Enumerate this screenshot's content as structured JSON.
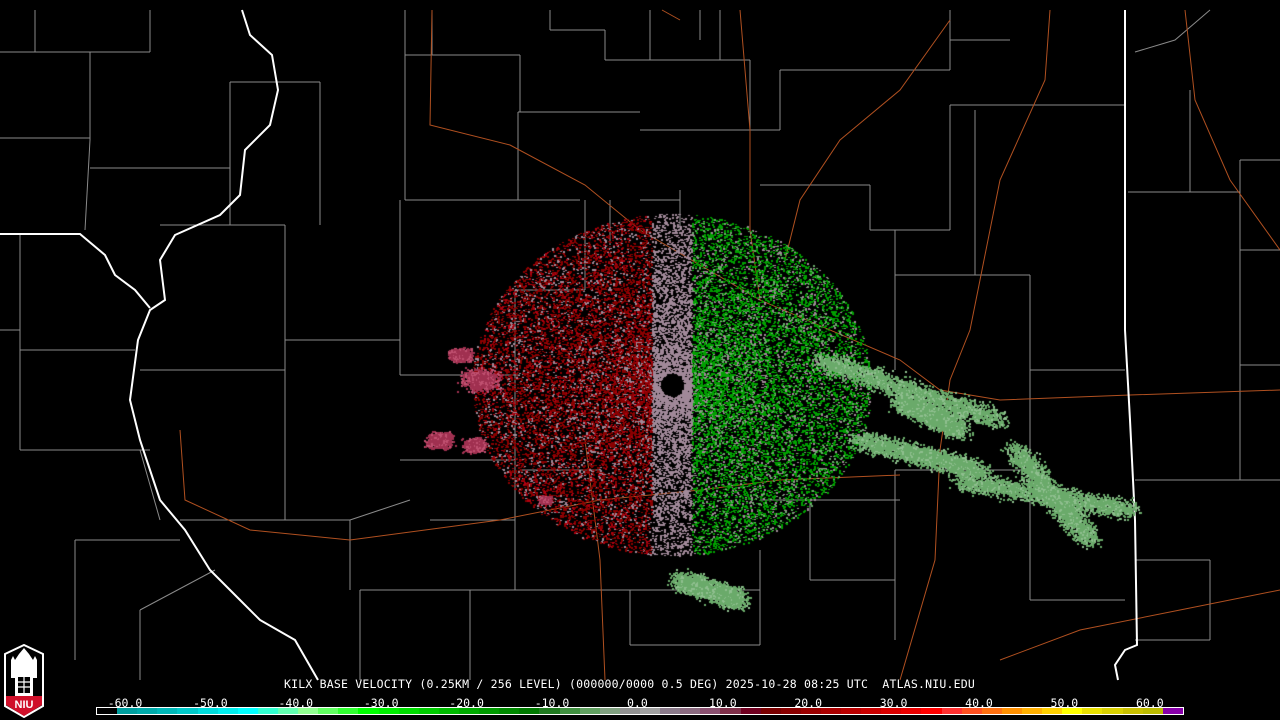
{
  "product": {
    "caption": "KILX BASE VELOCITY (0.25KM / 256 LEVEL) (000000/0000 0.5 DEG) 2025-10-28 08:25 UTC  ATLAS.NIU.EDU",
    "station": "KILX",
    "product_name": "BASE VELOCITY",
    "resolution": "0.25KM / 256 LEVEL",
    "elevation": "0.5 DEG",
    "datetime": "2025-10-28 08:25 UTC",
    "source": "ATLAS.NIU.EDU"
  },
  "logo": {
    "text": "NIU",
    "colors": {
      "shield": "#d0102a",
      "outline": "#ffffff"
    }
  },
  "legend": {
    "ticks": [
      "-60.0",
      "-50.0",
      "-40.0",
      "-30.0",
      "-20.0",
      "-10.0",
      "0.0",
      "10.0",
      "20.0",
      "30.0",
      "40.0",
      "50.0",
      "60.0"
    ],
    "colors": [
      "#000000",
      "#009e9e",
      "#00aaaa",
      "#00b8b8",
      "#00c8c8",
      "#00dcdc",
      "#00eeee",
      "#00ffff",
      "#30ffd0",
      "#60ffb0",
      "#90ff90",
      "#60ff60",
      "#30ff30",
      "#00ff00",
      "#00ee00",
      "#00dd00",
      "#00cc00",
      "#00bb00",
      "#00aa00",
      "#009a00",
      "#008a00",
      "#007a00",
      "#207a20",
      "#409040",
      "#60a060",
      "#80a080",
      "#909090",
      "#a0a0a0",
      "#8a7a8a",
      "#8a6a80",
      "#8a5070",
      "#80304a",
      "#700020",
      "#7a0000",
      "#8a0000",
      "#9a0000",
      "#aa0000",
      "#ba0000",
      "#ca0000",
      "#da0000",
      "#ea0000",
      "#ff0000",
      "#ff3030",
      "#ff5020",
      "#ff7010",
      "#ff9000",
      "#ffb000",
      "#ffd000",
      "#ffff00",
      "#e8e000",
      "#d8d000",
      "#c8c000",
      "#bbbb00",
      "#8800aa"
    ]
  },
  "radar": {
    "inbound_color": "#00a000",
    "outbound_color": "#8a0000",
    "near_zero_color": "#a08898",
    "weak_inbound_color": "#6aaa6a"
  },
  "map_colors": {
    "state_border": "#ffffff",
    "county_border": "#8a8a8a",
    "highway": "#b05020"
  }
}
